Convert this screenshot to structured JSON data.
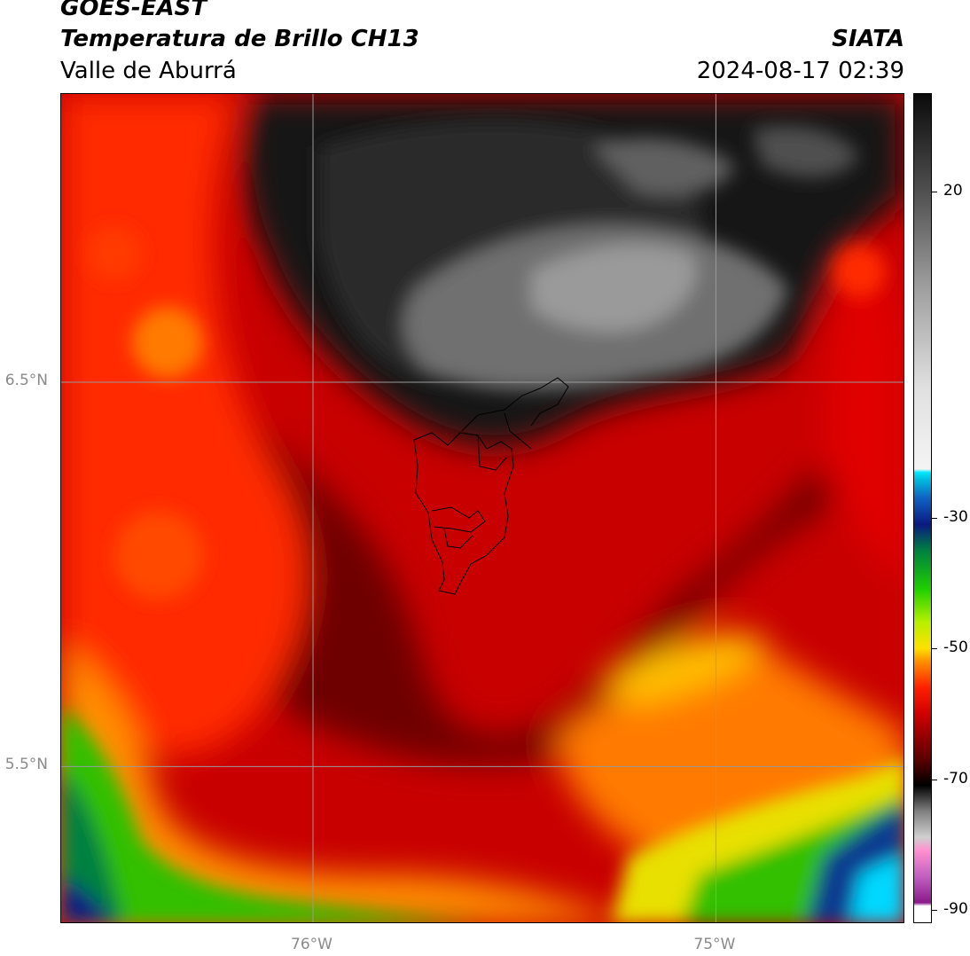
{
  "header": {
    "satellite": "GOES-EAST",
    "product": "Temperatura de Brillo CH13",
    "region": "Valle de Aburrá",
    "brand": "SIATA",
    "datetime": "2024-08-17 02:39"
  },
  "map": {
    "lat_labels": [
      {
        "value": 6.5,
        "text": "6.5°N"
      },
      {
        "value": 5.5,
        "text": "5.5°N"
      }
    ],
    "lon_labels": [
      {
        "value": -76,
        "text": "76°W"
      },
      {
        "value": -75,
        "text": "75°W"
      }
    ],
    "extent": {
      "lon_min": -76.625,
      "lon_max": -74.53,
      "lat_min": 5.09,
      "lat_max": 7.25
    },
    "gridline_color": "#9a9a9a",
    "boundary_color": "#000000"
  },
  "colorbar": {
    "min": -92,
    "max": 35,
    "tick_labels": [
      {
        "value": 20,
        "text": "20"
      },
      {
        "value": -30,
        "text": "-30"
      },
      {
        "value": -50,
        "text": "-50"
      },
      {
        "value": -70,
        "text": "-70"
      },
      {
        "value": -90,
        "text": "-90"
      }
    ],
    "stops": [
      {
        "v": -92,
        "c": "#ffffff"
      },
      {
        "v": -89.5,
        "c": "#ffffff"
      },
      {
        "v": -89,
        "c": "#8a1a8a"
      },
      {
        "v": -85,
        "c": "#c060c0"
      },
      {
        "v": -81,
        "c": "#ff90d0"
      },
      {
        "v": -79,
        "c": "#d0d0d0"
      },
      {
        "v": -75,
        "c": "#808080"
      },
      {
        "v": -71,
        "c": "#000000"
      },
      {
        "v": -67,
        "c": "#5a0000"
      },
      {
        "v": -60,
        "c": "#d00000"
      },
      {
        "v": -56,
        "c": "#ff2000"
      },
      {
        "v": -52,
        "c": "#ff9000"
      },
      {
        "v": -50,
        "c": "#ffe000"
      },
      {
        "v": -46,
        "c": "#b8f000"
      },
      {
        "v": -41,
        "c": "#20d000"
      },
      {
        "v": -35,
        "c": "#008040"
      },
      {
        "v": -31,
        "c": "#0a1a80"
      },
      {
        "v": -27,
        "c": "#1060c0"
      },
      {
        "v": -24,
        "c": "#00c0e0"
      },
      {
        "v": -23,
        "c": "#00e8ff"
      },
      {
        "v": -22.5,
        "c": "#f4f4f4"
      },
      {
        "v": -10,
        "c": "#e0e0e0"
      },
      {
        "v": 5,
        "c": "#a0a0a0"
      },
      {
        "v": 20,
        "c": "#505050"
      },
      {
        "v": 35,
        "c": "#0a0a0a"
      }
    ]
  }
}
